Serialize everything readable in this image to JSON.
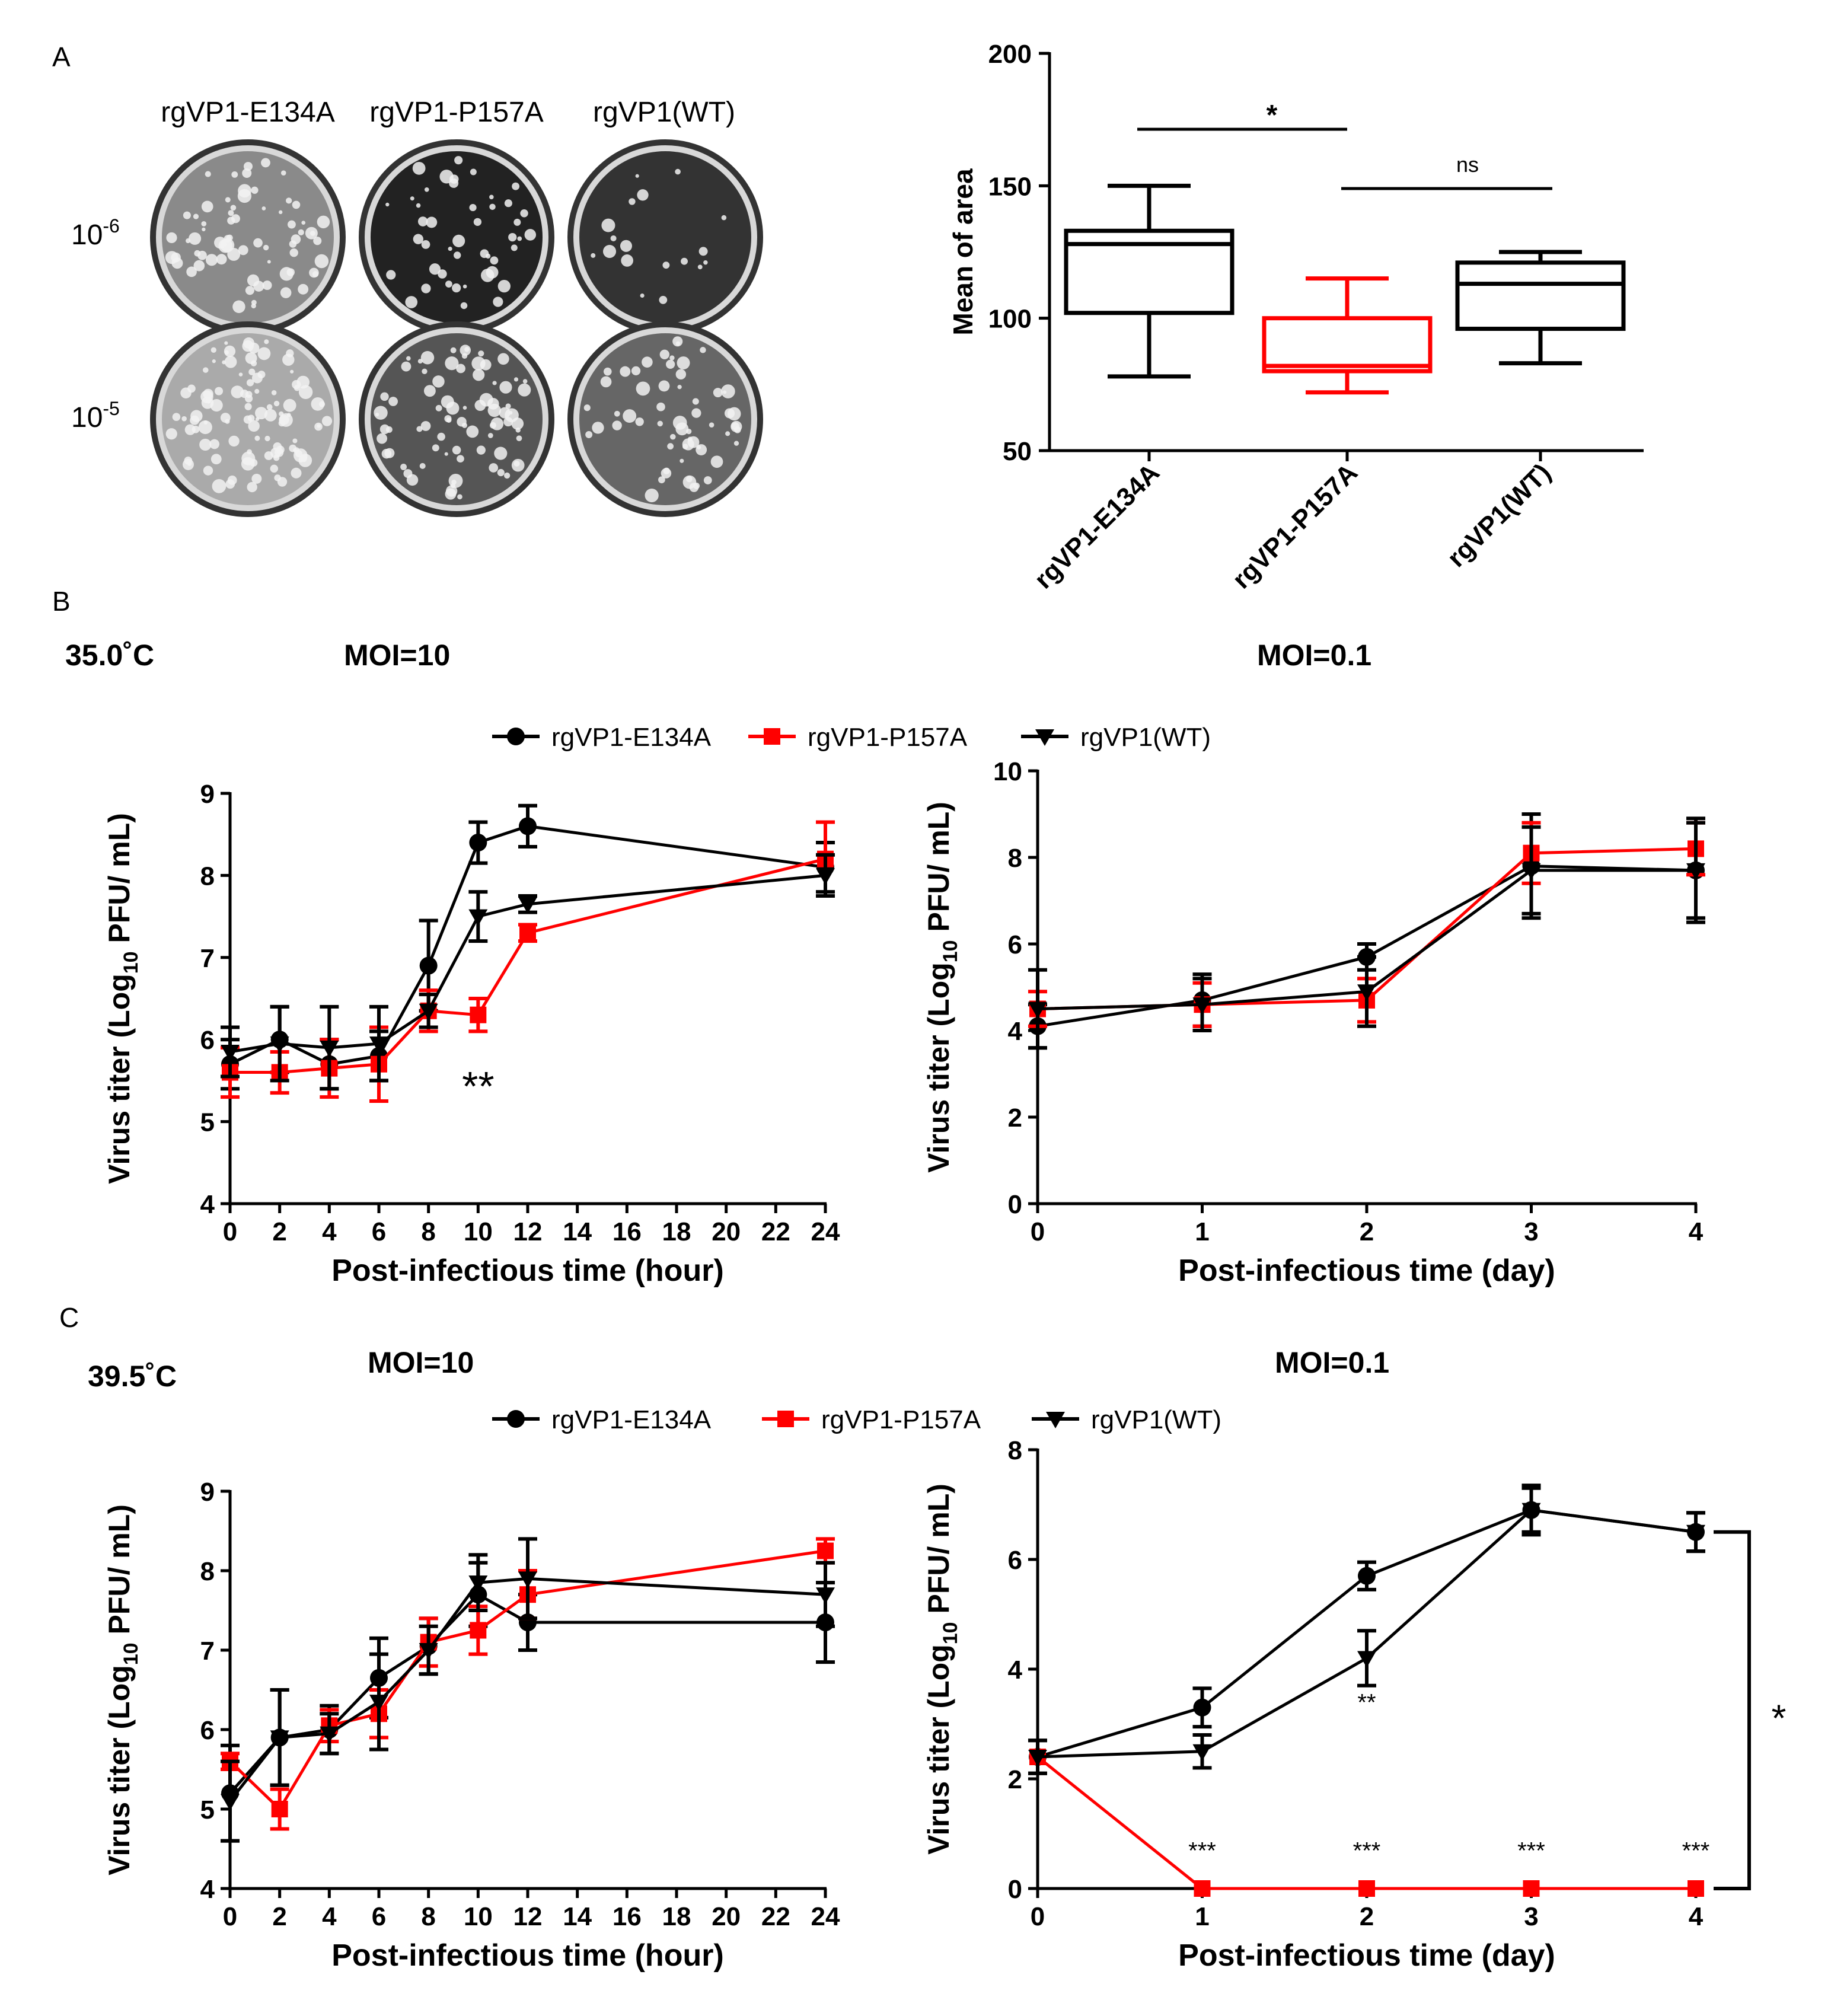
{
  "panel_labels": {
    "a": "A",
    "b": "B",
    "c": "C"
  },
  "panel_a": {
    "column_labels": [
      "rgVP1-E134A",
      "rgVP1-P157A",
      "rgVP1(WT)"
    ],
    "dilutions": [
      {
        "base": "10",
        "exp": "-6"
      },
      {
        "base": "10",
        "exp": "-5"
      }
    ]
  },
  "conditions": {
    "b": {
      "temperature": "35.0˚C",
      "moi_high": "MOI=10",
      "moi_low": "MOI=0.1"
    },
    "c": {
      "temperature": "39.5˚C",
      "moi_high": "MOI=10",
      "moi_low": "MOI=0.1"
    }
  },
  "legend": [
    "rgVP1-E134A",
    "rgVP1-P157A",
    "rgVP1(WT)"
  ],
  "colors": {
    "black": "#000000",
    "red": "#ff0000"
  },
  "y_label_parts": {
    "pre": "Virus titer (Log",
    "sub": "10",
    "post": " PFU/ mL)"
  },
  "chart_data": [
    {
      "id": "boxplot",
      "type": "box",
      "ylabel": "Mean of area",
      "categories": [
        "rgVP1-E134A",
        "rgVP1-P157A",
        "rgVP1(WT)"
      ],
      "ylim": [
        50,
        200
      ],
      "yticks": [
        50,
        100,
        150,
        200
      ],
      "boxes": [
        {
          "min": 78,
          "q1": 102,
          "median": 128,
          "q3": 133,
          "max": 150,
          "color": "#000000"
        },
        {
          "min": 72,
          "q1": 80,
          "median": 82,
          "q3": 100,
          "max": 115,
          "color": "#ff0000"
        },
        {
          "min": 83,
          "q1": 96,
          "median": 113,
          "q3": 121,
          "max": 125,
          "color": "#000000"
        }
      ],
      "annotations": [
        {
          "text": "*",
          "from": 0,
          "to": 1
        },
        {
          "text": "ns",
          "from": 1,
          "to": 2
        }
      ]
    },
    {
      "id": "b_left",
      "type": "line",
      "title": "MOI=10",
      "xlabel": "Post-infectious time (hour)",
      "x": [
        0,
        2,
        4,
        6,
        8,
        10,
        12,
        24
      ],
      "xticks": [
        0,
        2,
        4,
        6,
        8,
        10,
        12,
        14,
        16,
        18,
        20,
        22,
        24
      ],
      "xlim": [
        0,
        24
      ],
      "ylim": [
        4,
        9
      ],
      "yticks": [
        4,
        5,
        6,
        7,
        8,
        9
      ],
      "series": [
        {
          "name": "rgVP1-E134A",
          "values": [
            5.7,
            6.0,
            5.7,
            5.8,
            6.9,
            8.4,
            8.6,
            8.1
          ],
          "err": [
            0.3,
            0.4,
            0.3,
            0.3,
            0.55,
            0.25,
            0.25,
            0.3
          ],
          "marker": "circle",
          "color": "#000000"
        },
        {
          "name": "rgVP1-P157A",
          "values": [
            5.6,
            5.6,
            5.65,
            5.7,
            6.35,
            6.3,
            7.3,
            8.2
          ],
          "err": [
            0.3,
            0.25,
            0.35,
            0.45,
            0.25,
            0.2,
            0.1,
            0.45
          ],
          "marker": "square",
          "color": "#ff0000"
        },
        {
          "name": "rgVP1(WT)",
          "values": [
            5.85,
            5.95,
            5.9,
            5.95,
            6.35,
            7.5,
            7.65,
            8.0
          ],
          "err": [
            0.3,
            0.45,
            0.5,
            0.45,
            0.2,
            0.3,
            0.1,
            0.25
          ],
          "marker": "triangle",
          "color": "#000000"
        }
      ],
      "annotations": [
        {
          "text": "**",
          "x": 10,
          "y": 5.4
        }
      ]
    },
    {
      "id": "b_right",
      "type": "line",
      "title": "MOI=0.1",
      "xlabel": "Post-infectious time (day)",
      "x": [
        0,
        1,
        2,
        3,
        4
      ],
      "xticks": [
        0,
        1,
        2,
        3,
        4
      ],
      "xlim": [
        0,
        4
      ],
      "ylim": [
        0,
        10
      ],
      "yticks": [
        0,
        2,
        4,
        6,
        8,
        10
      ],
      "series": [
        {
          "name": "rgVP1-E134A",
          "values": [
            4.1,
            4.7,
            5.7,
            7.8,
            7.7
          ],
          "err": [
            0.5,
            0.6,
            0.3,
            1.2,
            1.2
          ],
          "marker": "circle",
          "color": "#000000"
        },
        {
          "name": "rgVP1-P157A",
          "values": [
            4.5,
            4.6,
            4.7,
            8.1,
            8.2
          ],
          "err": [
            0.4,
            0.5,
            0.5,
            0.7,
            0.6
          ],
          "marker": "square",
          "color": "#ff0000"
        },
        {
          "name": "rgVP1(WT)",
          "values": [
            4.5,
            4.6,
            4.9,
            7.7,
            7.7
          ],
          "err": [
            0.9,
            0.6,
            0.8,
            1.0,
            1.1
          ],
          "marker": "triangle",
          "color": "#000000"
        }
      ],
      "annotations": []
    },
    {
      "id": "c_left",
      "type": "line",
      "title": "MOI=10",
      "xlabel": "Post-infectious time (hour)",
      "x": [
        0,
        2,
        4,
        6,
        8,
        10,
        12,
        24
      ],
      "xticks": [
        0,
        2,
        4,
        6,
        8,
        10,
        12,
        14,
        16,
        18,
        20,
        22,
        24
      ],
      "xlim": [
        0,
        24
      ],
      "ylim": [
        4,
        9
      ],
      "yticks": [
        4,
        5,
        6,
        7,
        8,
        9
      ],
      "series": [
        {
          "name": "rgVP1-E134A",
          "values": [
            5.2,
            5.9,
            6.0,
            6.65,
            7.05,
            7.7,
            7.35,
            7.35
          ],
          "err": [
            0.6,
            0.6,
            0.3,
            0.5,
            0.35,
            0.4,
            0.35,
            0.5
          ],
          "marker": "circle",
          "color": "#000000"
        },
        {
          "name": "rgVP1-P157A",
          "values": [
            5.6,
            5.0,
            6.05,
            6.2,
            7.1,
            7.25,
            7.7,
            8.25
          ],
          "err": [
            0.1,
            0.25,
            0.2,
            0.3,
            0.3,
            0.3,
            0.3,
            0.15
          ],
          "marker": "square",
          "color": "#ff0000"
        },
        {
          "name": "rgVP1(WT)",
          "values": [
            5.1,
            5.9,
            5.95,
            6.35,
            7.0,
            7.85,
            7.9,
            7.7
          ],
          "err": [
            0.5,
            0.6,
            0.25,
            0.6,
            0.3,
            0.35,
            0.5,
            0.4
          ],
          "marker": "triangle",
          "color": "#000000"
        }
      ],
      "annotations": []
    },
    {
      "id": "c_right",
      "type": "line",
      "title": "MOI=0.1",
      "xlabel": "Post-infectious time (day)",
      "x": [
        0,
        1,
        2,
        3,
        4
      ],
      "xticks": [
        0,
        1,
        2,
        3,
        4
      ],
      "xlim": [
        0,
        4
      ],
      "ylim": [
        0,
        8
      ],
      "yticks": [
        0,
        2,
        4,
        6,
        8
      ],
      "series": [
        {
          "name": "rgVP1-E134A",
          "values": [
            2.4,
            3.3,
            5.7,
            6.9,
            6.5
          ],
          "err": [
            0.3,
            0.35,
            0.25,
            0.4,
            0.35
          ],
          "marker": "circle",
          "color": "#000000"
        },
        {
          "name": "rgVP1-P157A",
          "values": [
            2.4,
            0,
            0,
            0,
            0
          ],
          "err": [
            0,
            0,
            0,
            0,
            0
          ],
          "marker": "square",
          "color": "#ff0000"
        },
        {
          "name": "rgVP1(WT)",
          "values": [
            2.4,
            2.5,
            4.2,
            6.9,
            6.5
          ],
          "err": [
            0.3,
            0.3,
            0.5,
            0.45,
            0.35
          ],
          "marker": "triangle",
          "color": "#000000"
        }
      ],
      "annotations": [
        {
          "text": "**",
          "x": 2,
          "y": 3.4
        },
        {
          "text": "***",
          "x": 1,
          "y": 0.7
        },
        {
          "text": "***",
          "x": 2,
          "y": 0.7
        },
        {
          "text": "***",
          "x": 3,
          "y": 0.7
        },
        {
          "text": "***",
          "x": 4,
          "y": 0.7
        }
      ],
      "bracket": {
        "text": "*",
        "from": 6.5,
        "to": 0
      }
    }
  ]
}
